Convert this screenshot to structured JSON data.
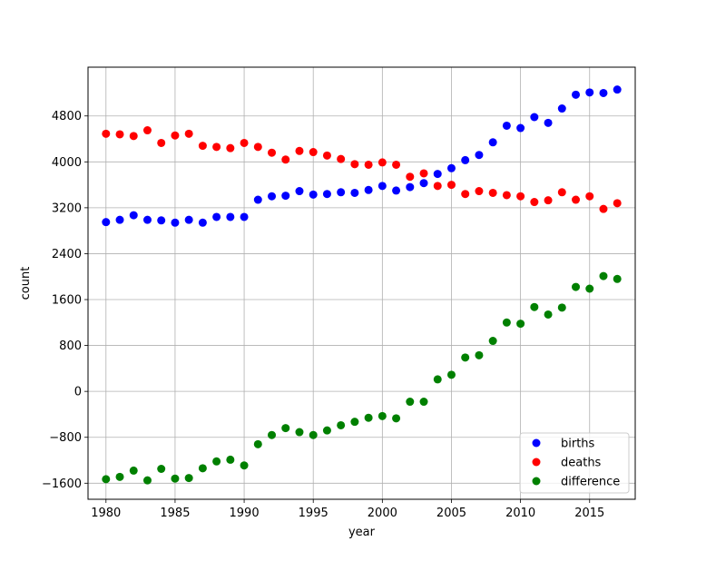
{
  "chart_data": {
    "type": "scatter",
    "title": "",
    "xlabel": "year",
    "ylabel": "count",
    "xlim": [
      1978.7,
      2018.3
    ],
    "ylim": [
      -1880,
      5650
    ],
    "xticks": [
      1980,
      1985,
      1990,
      1995,
      2000,
      2005,
      2010,
      2015
    ],
    "yticks": [
      -1600,
      -800,
      0,
      800,
      1600,
      2400,
      3200,
      4000,
      4800
    ],
    "ytick_labels": [
      "−1600",
      "−800",
      "0",
      "800",
      "1600",
      "2400",
      "3200",
      "4000",
      "4800"
    ],
    "grid": true,
    "legend_position": "bottom-right",
    "x": [
      1980,
      1981,
      1982,
      1983,
      1984,
      1985,
      1986,
      1987,
      1988,
      1989,
      1990,
      1991,
      1992,
      1993,
      1994,
      1995,
      1996,
      1997,
      1998,
      1999,
      2000,
      2001,
      2002,
      2003,
      2004,
      2005,
      2006,
      2007,
      2008,
      2009,
      2010,
      2011,
      2012,
      2013,
      2014,
      2015,
      2016,
      2017
    ],
    "series": [
      {
        "name": "births",
        "color": "#0000ff",
        "values": [
          2950,
          2990,
          3070,
          2990,
          2980,
          2940,
          2990,
          2940,
          3040,
          3040,
          3040,
          3340,
          3400,
          3410,
          3490,
          3430,
          3440,
          3470,
          3460,
          3510,
          3580,
          3500,
          3560,
          3630,
          3790,
          3890,
          4030,
          4120,
          4340,
          4630,
          4590,
          4780,
          4680,
          4930,
          5170,
          5210,
          5200,
          5260
        ]
      },
      {
        "name": "deaths",
        "color": "#ff0000",
        "values": [
          4490,
          4480,
          4450,
          4550,
          4330,
          4460,
          4490,
          4280,
          4260,
          4240,
          4330,
          4260,
          4160,
          4040,
          4190,
          4170,
          4110,
          4050,
          3960,
          3950,
          3990,
          3950,
          3740,
          3800,
          3580,
          3600,
          3440,
          3490,
          3460,
          3420,
          3400,
          3300,
          3330,
          3470,
          3340,
          3400,
          3180,
          3280
        ]
      },
      {
        "name": "difference",
        "color": "#008000",
        "values": [
          -1530,
          -1490,
          -1380,
          -1550,
          -1350,
          -1520,
          -1510,
          -1340,
          -1220,
          -1190,
          -1290,
          -920,
          -760,
          -640,
          -710,
          -760,
          -680,
          -590,
          -530,
          -460,
          -430,
          -470,
          -180,
          -180,
          210,
          290,
          590,
          630,
          880,
          1200,
          1180,
          1470,
          1340,
          1460,
          1820,
          1790,
          2010,
          1960
        ]
      }
    ]
  }
}
